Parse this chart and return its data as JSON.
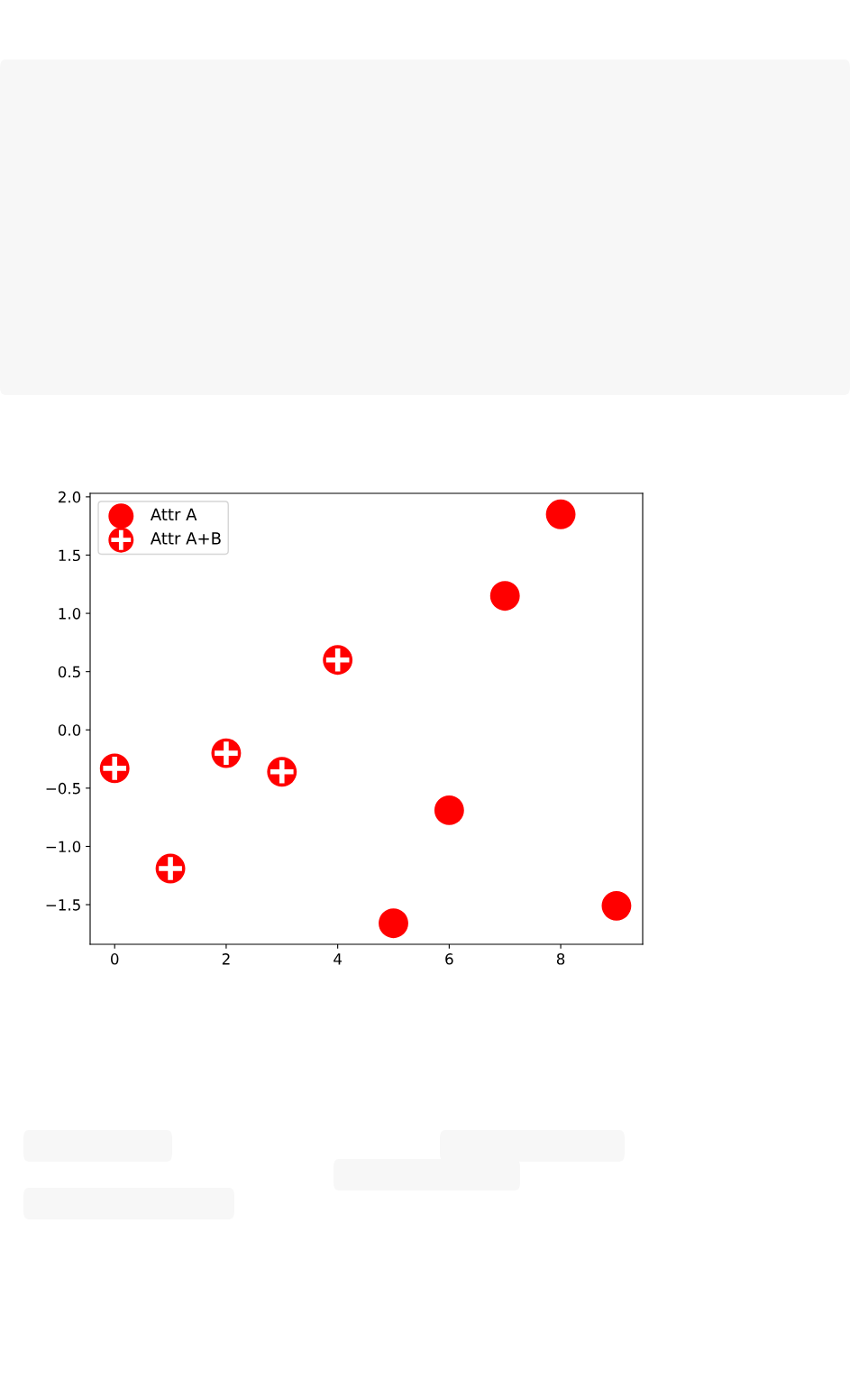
{
  "chart_data": {
    "type": "scatter",
    "series": [
      {
        "name": "Attr A",
        "color": "#ff0000",
        "marker": "circle",
        "x": [
          5,
          6,
          7,
          8,
          9
        ],
        "values": [
          -1.66,
          -0.69,
          1.15,
          1.85,
          -1.51
        ]
      },
      {
        "name": "Attr A+B",
        "color": "#ff0000",
        "marker": "cross",
        "x": [
          0,
          1,
          2,
          3,
          4
        ],
        "values": [
          -0.33,
          -1.19,
          -0.2,
          -0.36,
          0.6
        ]
      }
    ],
    "xlim": [
      -0.44,
      9.47
    ],
    "ylim": [
      -1.84,
      2.03
    ],
    "xticks": [
      0,
      2,
      4,
      6,
      8
    ],
    "yticks": [
      {
        "value": -1.5,
        "label": "−1.5"
      },
      {
        "value": -1,
        "label": "−1.0"
      },
      {
        "value": -0.5,
        "label": "−0.5"
      },
      {
        "value": 0,
        "label": "0.0"
      },
      {
        "value": 0.5,
        "label": "0.5"
      },
      {
        "value": 1,
        "label": "1.0"
      },
      {
        "value": 1.5,
        "label": "1.5"
      },
      {
        "value": 2,
        "label": "2.0"
      }
    ],
    "grid": false,
    "legend": "top left"
  }
}
